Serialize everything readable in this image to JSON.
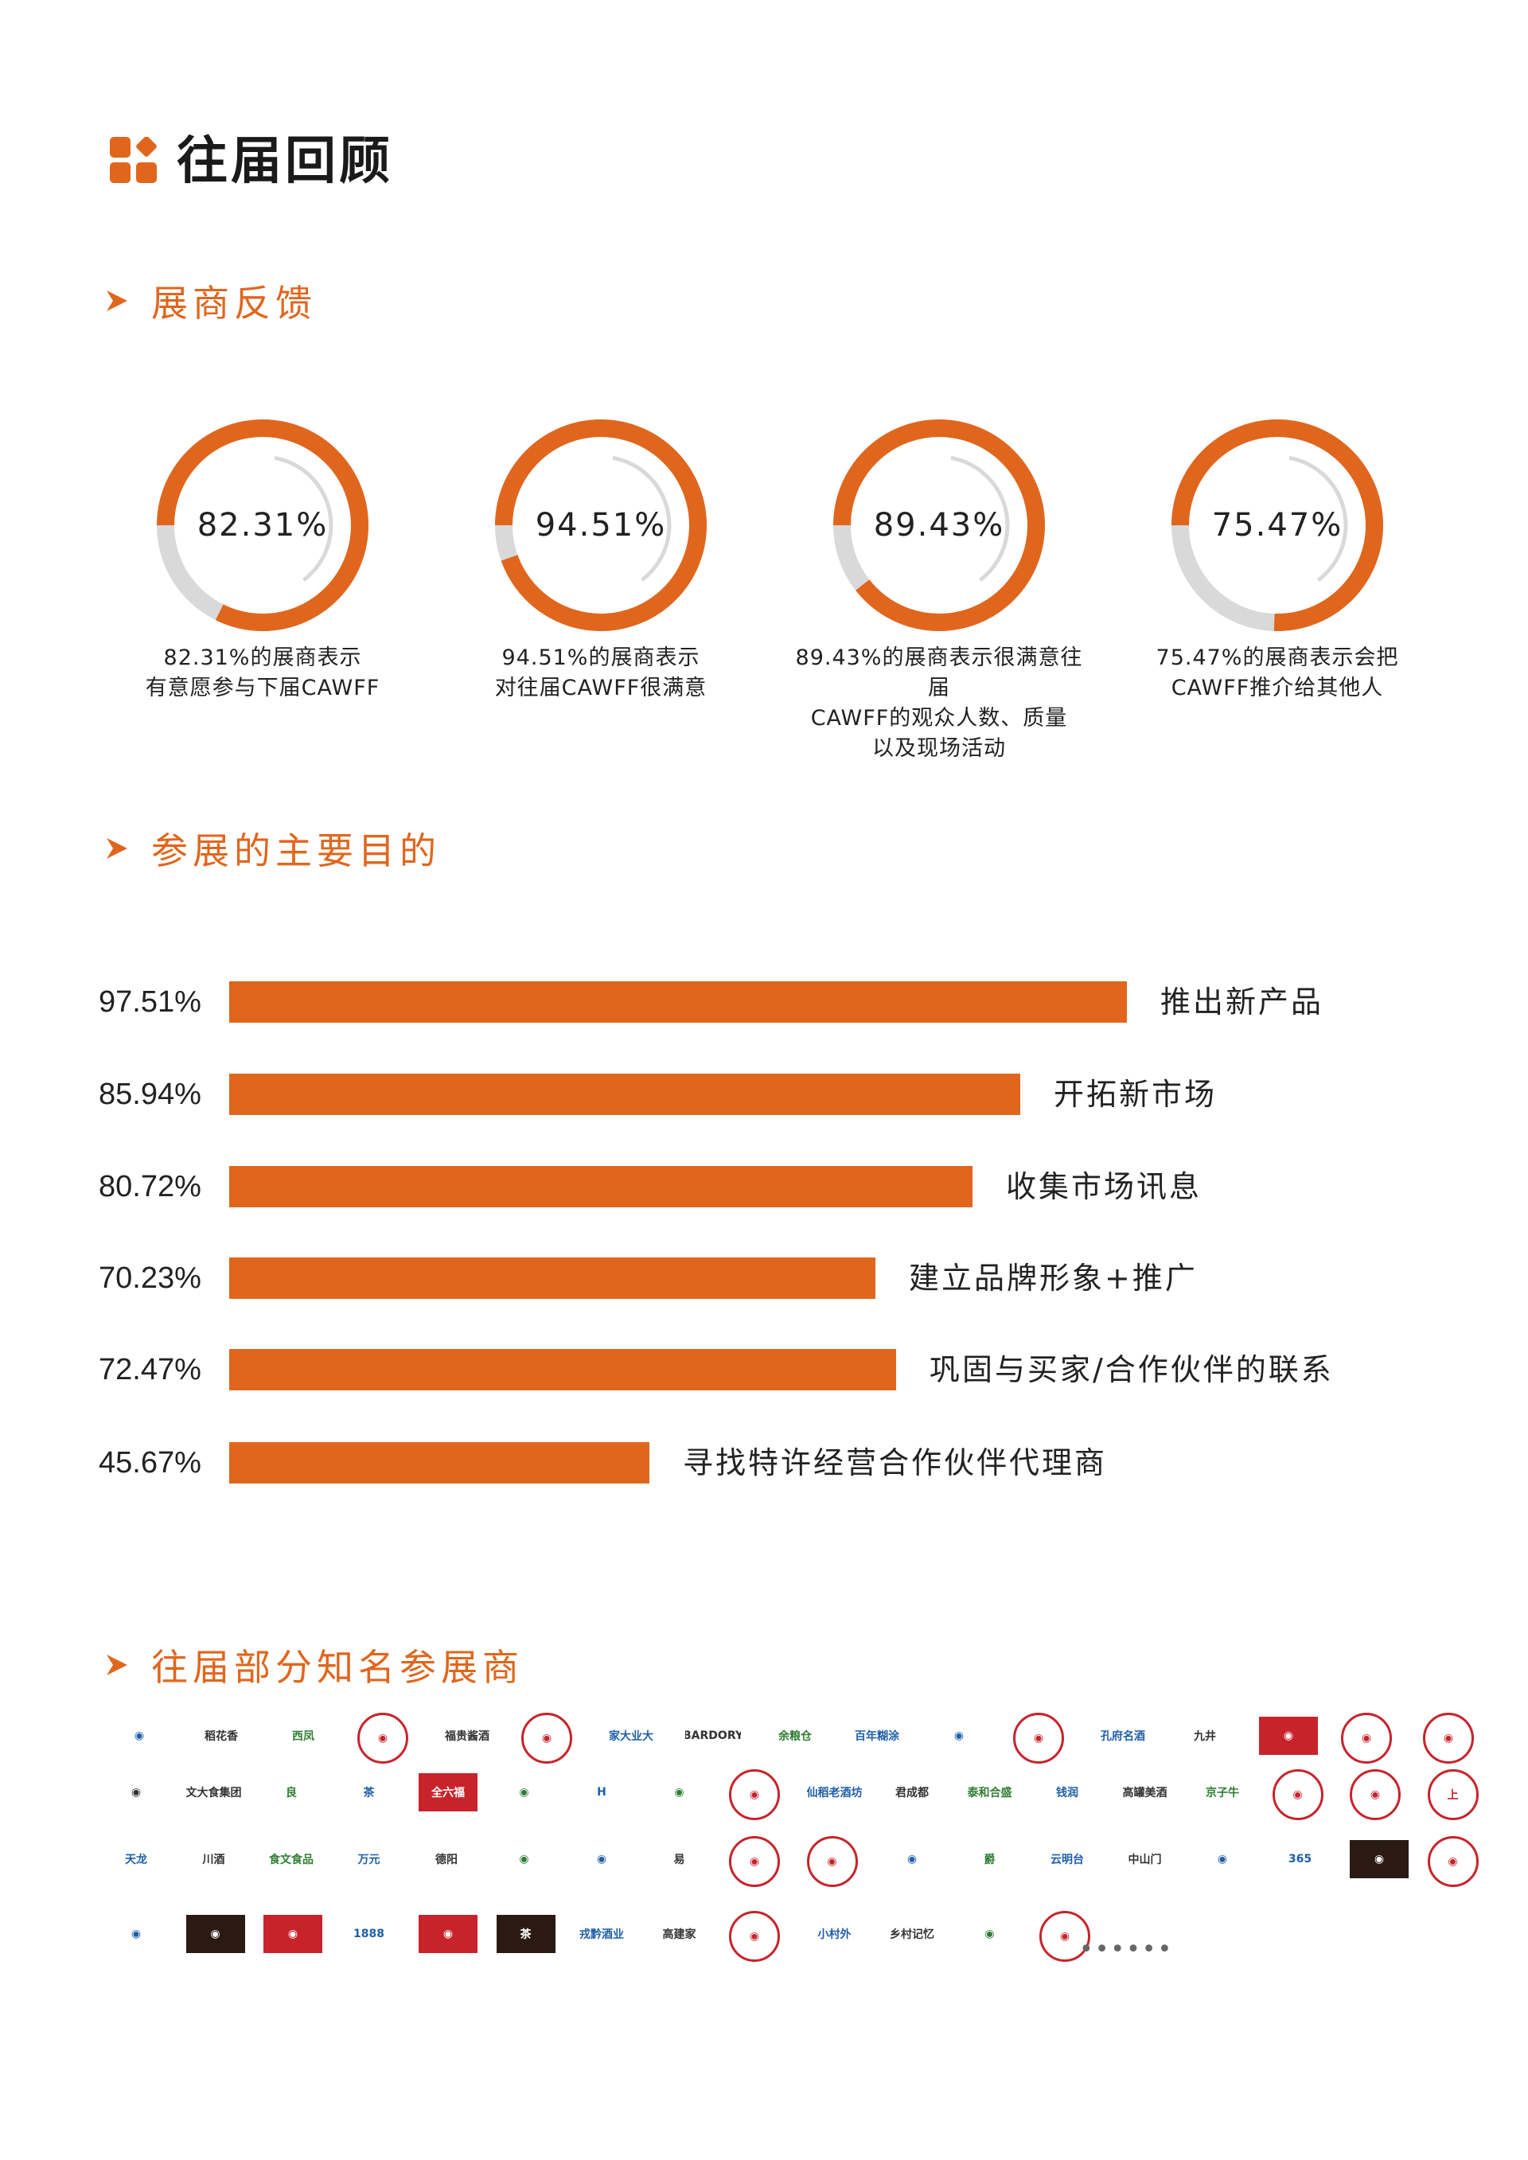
{
  "header": {
    "title": "往届回顾"
  },
  "sections": {
    "feedback": "展商反馈",
    "purpose": "参展的主要目的",
    "exhibitors": "往届部分知名参展商"
  },
  "colors": {
    "accent": "#E0661D",
    "ring_bg": "#D9D9D9"
  },
  "donuts": [
    {
      "value": "82.31%",
      "fraction": 0.8231,
      "caption_lines": [
        "82.31%的展商表示",
        "有意愿参与下届CAWFF"
      ]
    },
    {
      "value": "94.51%",
      "fraction": 0.9451,
      "caption_lines": [
        "94.51%的展商表示",
        "对往届CAWFF很满意"
      ]
    },
    {
      "value": "89.43%",
      "fraction": 0.8943,
      "caption_lines": [
        "89.43%的展商表示很满意往届",
        "CAWFF的观众人数、质量",
        "以及现场活动"
      ]
    },
    {
      "value": "75.47%",
      "fraction": 0.7547,
      "caption_lines": [
        "75.47%的展商表示会把",
        "CAWFF推介给其他人"
      ]
    }
  ],
  "chart_data": {
    "type": "bar",
    "orientation": "horizontal",
    "categories": [
      "推出新产品",
      "开拓新市场",
      "收集市场讯息",
      "建立品牌形象+推广",
      "巩固与买家/合作伙伴的联系",
      "寻找特许经营合作伙伴代理商"
    ],
    "value_labels": [
      "97.51%",
      "85.94%",
      "80.72%",
      "70.23%",
      "72.47%",
      "45.67%"
    ],
    "values": [
      97.51,
      85.94,
      80.72,
      70.23,
      72.47,
      45.67
    ],
    "xlim": [
      0,
      100
    ]
  },
  "exhibitor_logos": [
    {
      "icon": "logo-badge-emblem",
      "text": ""
    },
    {
      "icon": "logo-text",
      "text": "稻花香"
    },
    {
      "icon": "logo-text",
      "text": "西凤"
    },
    {
      "icon": "logo-seal",
      "text": ""
    },
    {
      "icon": "logo-text",
      "text": "福贵酱酒"
    },
    {
      "icon": "logo-seal",
      "text": ""
    },
    {
      "icon": "logo-text",
      "text": "家大业大"
    },
    {
      "icon": "logo-text",
      "text": "BARDORY"
    },
    {
      "icon": "logo-text",
      "text": "余粮仓"
    },
    {
      "icon": "logo-text",
      "text": "百年糊涂"
    },
    {
      "icon": "logo-badge-emblem",
      "text": ""
    },
    {
      "icon": "logo-seal",
      "text": ""
    },
    {
      "icon": "logo-text",
      "text": "孔府名酒"
    },
    {
      "icon": "logo-text",
      "text": "九井"
    },
    {
      "icon": "logo-rect",
      "text": ""
    },
    {
      "icon": "logo-seal",
      "text": ""
    },
    {
      "icon": "logo-seal",
      "text": ""
    },
    {
      "icon": "logo-mountain",
      "text": ""
    },
    {
      "icon": "logo-text",
      "text": "文大食集团"
    },
    {
      "icon": "logo-text",
      "text": "良"
    },
    {
      "icon": "logo-text",
      "text": "茶"
    },
    {
      "icon": "logo-rect",
      "text": "全六福"
    },
    {
      "icon": "logo-badge-emblem",
      "text": ""
    },
    {
      "icon": "logo-text",
      "text": "H"
    },
    {
      "icon": "logo-badge-emblem",
      "text": ""
    },
    {
      "icon": "logo-seal",
      "text": ""
    },
    {
      "icon": "logo-text",
      "text": "仙稻老酒坊"
    },
    {
      "icon": "logo-text",
      "text": "君成都"
    },
    {
      "icon": "logo-text",
      "text": "泰和合盛"
    },
    {
      "icon": "logo-text",
      "text": "钱润"
    },
    {
      "icon": "logo-text",
      "text": "高罐美酒"
    },
    {
      "icon": "logo-text",
      "text": "京子牛"
    },
    {
      "icon": "logo-seal",
      "text": ""
    },
    {
      "icon": "logo-seal",
      "text": ""
    },
    {
      "icon": "logo-seal",
      "text": "上"
    },
    {
      "icon": "logo-text",
      "text": "天龙"
    },
    {
      "icon": "logo-text",
      "text": "川酒"
    },
    {
      "icon": "logo-text",
      "text": "食文食品"
    },
    {
      "icon": "logo-text",
      "text": "万元"
    },
    {
      "icon": "logo-text",
      "text": "德阳"
    },
    {
      "icon": "logo-badge-emblem",
      "text": ""
    },
    {
      "icon": "logo-badge-emblem",
      "text": ""
    },
    {
      "icon": "logo-text",
      "text": "易"
    },
    {
      "icon": "logo-seal",
      "text": ""
    },
    {
      "icon": "logo-seal",
      "text": ""
    },
    {
      "icon": "logo-badge-emblem",
      "text": ""
    },
    {
      "icon": "logo-text",
      "text": "爵"
    },
    {
      "icon": "logo-text",
      "text": "云明台"
    },
    {
      "icon": "logo-text",
      "text": "中山门"
    },
    {
      "icon": "logo-badge-emblem",
      "text": ""
    },
    {
      "icon": "logo-text",
      "text": "365"
    },
    {
      "icon": "logo-dark",
      "text": ""
    },
    {
      "icon": "logo-seal",
      "text": ""
    },
    {
      "icon": "logo-badge-emblem",
      "text": ""
    },
    {
      "icon": "logo-dark",
      "text": ""
    },
    {
      "icon": "logo-rect",
      "text": ""
    },
    {
      "icon": "logo-text",
      "text": "1888"
    },
    {
      "icon": "logo-rect",
      "text": ""
    },
    {
      "icon": "logo-dark",
      "text": "茶"
    },
    {
      "icon": "logo-text",
      "text": "戎黔酒业"
    },
    {
      "icon": "logo-text",
      "text": "高建家"
    },
    {
      "icon": "logo-seal",
      "text": ""
    },
    {
      "icon": "logo-text",
      "text": "小村外"
    },
    {
      "icon": "logo-text",
      "text": "乡村记忆"
    },
    {
      "icon": "logo-text",
      "text": ""
    },
    {
      "icon": "logo-seal",
      "text": ""
    }
  ],
  "more_indicator": "••••••"
}
